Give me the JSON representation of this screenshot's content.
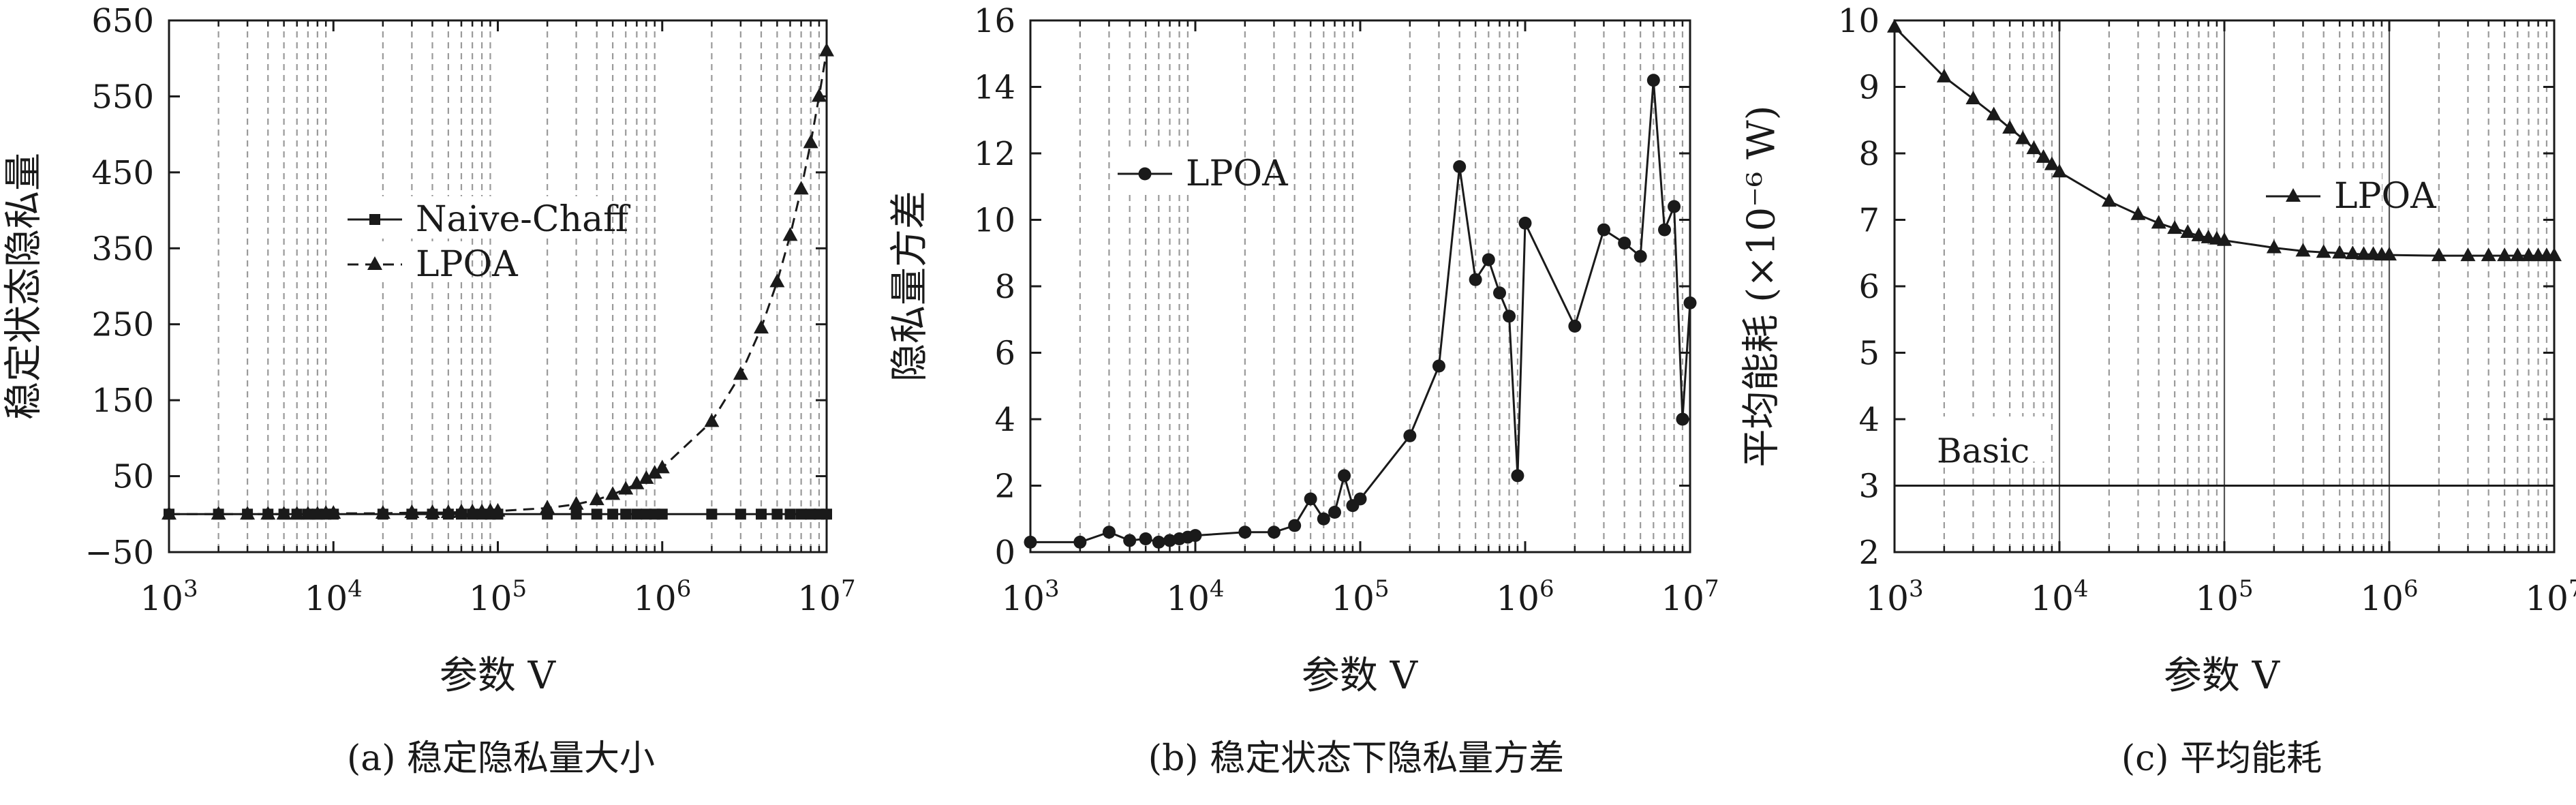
{
  "chart_data": [
    {
      "type": "line",
      "title": "",
      "caption": "(a) 稳定隐私量大小",
      "xlabel": "参数 V",
      "ylabel": "稳定状态隐私量",
      "xscale": "log",
      "xlim": [
        1000,
        10000000
      ],
      "ylim": [
        -50,
        650
      ],
      "x_ticks": [
        1000,
        10000,
        100000,
        1000000,
        10000000
      ],
      "x_tick_labels": [
        [
          "10",
          "3"
        ],
        [
          "10",
          "4"
        ],
        [
          "10",
          "5"
        ],
        [
          "10",
          "6"
        ],
        [
          "10",
          "7"
        ]
      ],
      "y_ticks": [
        -50,
        50,
        150,
        250,
        350,
        450,
        550,
        650
      ],
      "y_tick_labels": [
        "−50",
        "50",
        "150",
        "250",
        "350",
        "450",
        "550",
        "650"
      ],
      "grid": "x-minor-dashed",
      "legend": "center-left",
      "series": [
        {
          "name": "Naive-Chaff",
          "marker": "square",
          "line": "solid",
          "x": [
            1000,
            2000,
            3000,
            4000,
            5000,
            6000,
            7000,
            8000,
            9000,
            10000,
            20000,
            30000,
            40000,
            50000,
            60000,
            70000,
            80000,
            90000,
            100000,
            200000,
            300000,
            400000,
            500000,
            600000,
            700000,
            800000,
            900000,
            1000000,
            2000000,
            3000000,
            4000000,
            5000000,
            6000000,
            7000000,
            8000000,
            9000000,
            10000000
          ],
          "y": [
            0,
            0,
            0,
            0,
            0,
            0,
            0,
            0,
            0,
            0,
            0,
            0,
            0,
            0,
            0,
            0,
            0,
            0,
            0,
            0,
            0,
            0,
            0,
            0,
            0,
            0,
            0,
            0,
            0,
            0,
            0,
            0,
            0,
            0,
            0,
            0,
            0
          ]
        },
        {
          "name": "LPOA",
          "marker": "triangle",
          "line": "dashed",
          "x": [
            1000,
            2000,
            3000,
            4000,
            5000,
            6000,
            7000,
            8000,
            9000,
            10000,
            20000,
            30000,
            40000,
            50000,
            60000,
            70000,
            80000,
            90000,
            100000,
            200000,
            300000,
            400000,
            500000,
            600000,
            700000,
            800000,
            900000,
            1000000,
            2000000,
            3000000,
            4000000,
            5000000,
            6000000,
            7000000,
            8000000,
            9000000,
            10000000
          ],
          "y": [
            0,
            0,
            0,
            0,
            0,
            0,
            0,
            0,
            1,
            1,
            1,
            2,
            2,
            2,
            3,
            3,
            3,
            4,
            4,
            8,
            13,
            19,
            26,
            33,
            40,
            47,
            54,
            61,
            122,
            184,
            245,
            306,
            367,
            428,
            489,
            550,
            610
          ]
        }
      ]
    },
    {
      "type": "line",
      "title": "",
      "caption": "(b) 稳定状态下隐私量方差",
      "xlabel": "参数 V",
      "ylabel": "隐私量方差",
      "xscale": "log",
      "xlim": [
        1000,
        10000000
      ],
      "ylim": [
        0,
        16
      ],
      "x_ticks": [
        1000,
        10000,
        100000,
        1000000,
        10000000
      ],
      "x_tick_labels": [
        [
          "10",
          "3"
        ],
        [
          "10",
          "4"
        ],
        [
          "10",
          "5"
        ],
        [
          "10",
          "6"
        ],
        [
          "10",
          "7"
        ]
      ],
      "y_ticks": [
        0,
        2,
        4,
        6,
        8,
        10,
        12,
        14,
        16
      ],
      "y_tick_labels": [
        "0",
        "2",
        "4",
        "6",
        "8",
        "10",
        "12",
        "14",
        "16"
      ],
      "grid": "x-minor-dashed",
      "legend": "top-left",
      "series": [
        {
          "name": "LPOA",
          "marker": "circle",
          "line": "solid",
          "x": [
            1000,
            2000,
            3000,
            4000,
            5000,
            6000,
            7000,
            8000,
            9000,
            10000,
            20000,
            30000,
            40000,
            50000,
            60000,
            70000,
            80000,
            90000,
            100000,
            200000,
            300000,
            400000,
            500000,
            600000,
            700000,
            800000,
            900000,
            1000000,
            2000000,
            3000000,
            4000000,
            5000000,
            6000000,
            7000000,
            8000000,
            9000000,
            10000000
          ],
          "y": [
            0.3,
            0.3,
            0.6,
            0.35,
            0.4,
            0.3,
            0.35,
            0.4,
            0.45,
            0.5,
            0.6,
            0.6,
            0.8,
            1.6,
            1.0,
            1.2,
            2.3,
            1.4,
            1.6,
            3.5,
            5.6,
            11.6,
            8.2,
            8.8,
            7.8,
            7.1,
            2.3,
            9.9,
            6.8,
            9.7,
            9.3,
            8.9,
            14.2,
            9.7,
            10.4,
            4.0,
            7.5
          ]
        }
      ]
    },
    {
      "type": "line",
      "title": "",
      "caption": "(c) 平均能耗",
      "xlabel": "参数 V",
      "ylabel": "平均能耗 (×10⁻⁶ W)",
      "xscale": "log",
      "xlim": [
        1000,
        10000000
      ],
      "ylim": [
        2,
        10
      ],
      "x_ticks": [
        1000,
        10000,
        100000,
        1000000,
        10000000
      ],
      "x_tick_labels": [
        [
          "10",
          "3"
        ],
        [
          "10",
          "4"
        ],
        [
          "10",
          "5"
        ],
        [
          "10",
          "6"
        ],
        [
          "10",
          "7"
        ]
      ],
      "y_ticks": [
        2,
        3,
        4,
        5,
        6,
        7,
        8,
        9,
        10
      ],
      "y_tick_labels": [
        "2",
        "3",
        "4",
        "5",
        "6",
        "7",
        "8",
        "9",
        "10"
      ],
      "grid": "x-minor-dashed",
      "legend": "top-right",
      "annotation": "Basic",
      "reference_line": 3,
      "series": [
        {
          "name": "LPOA",
          "marker": "triangle",
          "line": "solid",
          "x": [
            1000,
            2000,
            3000,
            4000,
            5000,
            6000,
            7000,
            8000,
            9000,
            10000,
            20000,
            30000,
            40000,
            50000,
            60000,
            70000,
            80000,
            90000,
            100000,
            200000,
            300000,
            400000,
            500000,
            600000,
            700000,
            800000,
            900000,
            1000000,
            2000000,
            3000000,
            4000000,
            5000000,
            6000000,
            7000000,
            8000000,
            9000000,
            10000000
          ],
          "y": [
            9.9,
            9.15,
            8.82,
            8.58,
            8.38,
            8.22,
            8.07,
            7.94,
            7.83,
            7.72,
            7.28,
            7.08,
            6.95,
            6.87,
            6.81,
            6.76,
            6.73,
            6.71,
            6.69,
            6.58,
            6.53,
            6.51,
            6.5,
            6.49,
            6.48,
            6.48,
            6.47,
            6.47,
            6.46,
            6.46,
            6.46,
            6.46,
            6.46,
            6.46,
            6.46,
            6.46,
            6.46
          ]
        }
      ]
    }
  ]
}
